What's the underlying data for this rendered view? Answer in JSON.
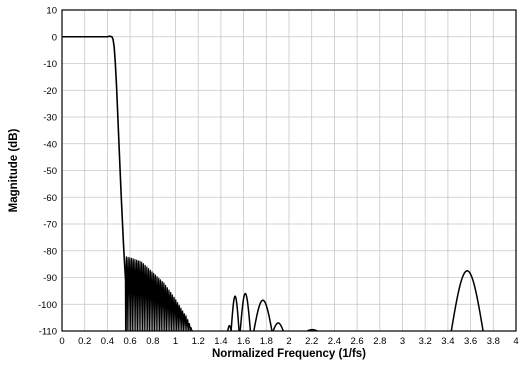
{
  "chart_data": {
    "type": "line",
    "title": "",
    "xlabel": "Normalized Frequency (1/fs)",
    "ylabel": "Magnitude (dB)",
    "xlim": [
      0,
      4
    ],
    "ylim": [
      -110,
      10
    ],
    "grid": true,
    "x_ticks": [
      0,
      0.2,
      0.4,
      0.6,
      0.8,
      1,
      1.2,
      1.4,
      1.6,
      1.8,
      2,
      2.2,
      2.4,
      2.6,
      2.8,
      3,
      3.2,
      3.4,
      3.6,
      3.8,
      4
    ],
    "x_tick_labels": [
      "0",
      "0.2",
      "0.4",
      "0.6",
      "0.8",
      "1",
      "1.2",
      "1.4",
      "1.6",
      "1.8",
      "2",
      "2.2",
      "2.4",
      "2.6",
      "2.8",
      "3",
      "3.2",
      "3.4",
      "3.6",
      "3.8",
      "4"
    ],
    "y_ticks": [
      10,
      0,
      -10,
      -20,
      -30,
      -40,
      -50,
      -60,
      -70,
      -80,
      -90,
      -100,
      -110
    ],
    "y_tick_labels": [
      "10",
      "0",
      "-10",
      "-20",
      "-30",
      "-40",
      "-50",
      "-60",
      "-70",
      "-80",
      "-90",
      "-100",
      "-110"
    ],
    "series": [
      {
        "color": "#000000",
        "x": [
          0,
          0.2,
          0.36,
          0.4,
          0.42,
          0.44,
          0.45,
          0.46,
          0.47,
          0.48,
          0.49,
          0.5,
          0.51,
          0.52,
          0.53,
          0.54,
          0.55,
          0.56,
          0.562
        ],
        "y": [
          0,
          0,
          0,
          0,
          0.2,
          0,
          -1,
          -4,
          -10,
          -18,
          -28,
          -38,
          -48,
          -58,
          -67,
          -76,
          -84,
          -91,
          -110
        ]
      }
    ],
    "stopband": {
      "lobe_spacing": 0.015,
      "envelope": [
        [
          0.56,
          -82
        ],
        [
          0.6,
          -82.5
        ],
        [
          0.7,
          -84
        ],
        [
          0.8,
          -88
        ],
        [
          0.9,
          -92
        ],
        [
          1.0,
          -98
        ],
        [
          1.1,
          -105
        ],
        [
          1.15,
          -110
        ]
      ]
    },
    "lobes": [
      [
        1.46,
        1.49,
        -108
      ],
      [
        1.49,
        1.56,
        -97
      ],
      [
        1.57,
        1.66,
        -96
      ],
      [
        1.69,
        1.85,
        -98.5
      ],
      [
        1.86,
        1.95,
        -107
      ],
      [
        2.16,
        2.25,
        -109.5
      ],
      [
        3.43,
        3.71,
        -87.5
      ]
    ]
  }
}
